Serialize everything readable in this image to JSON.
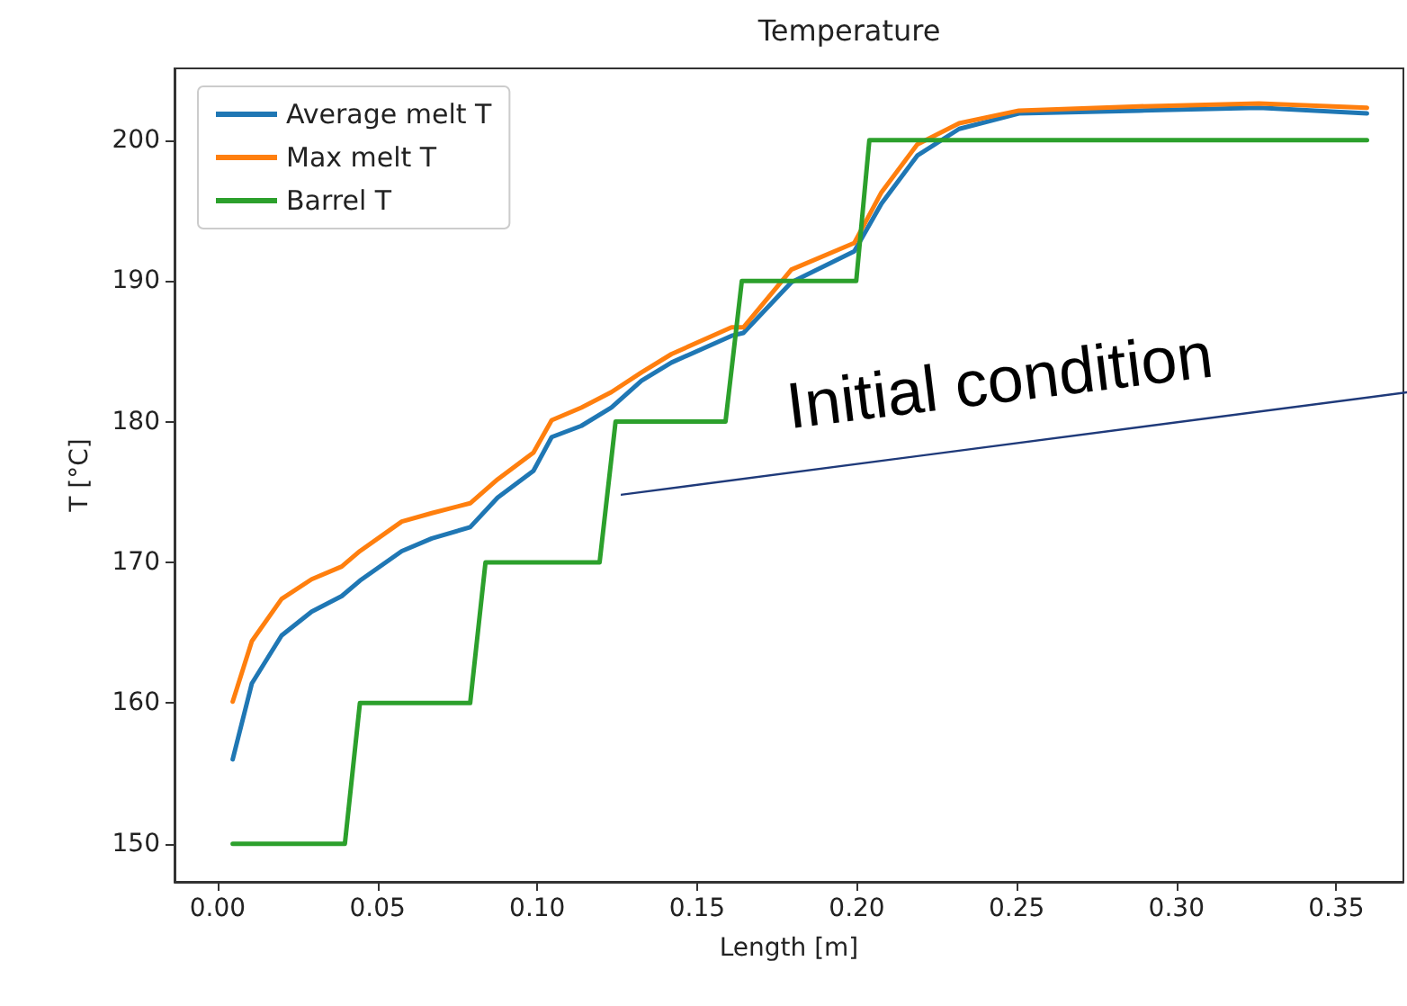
{
  "chart_data": {
    "type": "line",
    "title": "Temperature",
    "xlabel": "Length [m]",
    "ylabel": "T [°C]",
    "xlim": [
      -0.0135,
      0.371
    ],
    "ylim": [
      147.3,
      205.1
    ],
    "xticks": [
      {
        "value": 0,
        "label": "0.00"
      },
      0.05,
      {
        "value": 0.1,
        "label": "0.10"
      },
      0.15,
      {
        "value": 0.2,
        "label": "0.20"
      },
      0.25,
      {
        "value": 0.3,
        "label": "0.30"
      },
      0.35
    ],
    "yticks": [
      150,
      160,
      170,
      180,
      190,
      200
    ],
    "grid": false,
    "legend": "top left",
    "marker": "none",
    "line_style": "solid",
    "series": [
      {
        "name": "Average melt T",
        "color": "#1f77b4",
        "x": [
          0.0047,
          0.0107,
          0.02,
          0.0294,
          0.0388,
          0.0445,
          0.0576,
          0.067,
          0.079,
          0.0876,
          0.0988,
          0.1045,
          0.1138,
          0.1232,
          0.1326,
          0.142,
          0.1608,
          0.1645,
          0.1795,
          0.1992,
          0.2077,
          0.2189,
          0.232,
          0.2507,
          0.2883,
          0.3258,
          0.3596
        ],
        "values": [
          156.0,
          161.4,
          164.8,
          166.5,
          167.6,
          168.7,
          170.8,
          171.7,
          172.5,
          174.6,
          176.5,
          178.9,
          179.7,
          181.0,
          182.9,
          184.2,
          186.1,
          186.3,
          189.9,
          192.1,
          195.5,
          198.9,
          200.8,
          201.9,
          202.1,
          202.3,
          201.9
        ]
      },
      {
        "name": "Max melt T",
        "color": "#ff7f0e",
        "x": [
          0.0047,
          0.0107,
          0.02,
          0.0294,
          0.0388,
          0.0445,
          0.0576,
          0.067,
          0.079,
          0.0876,
          0.0988,
          0.1045,
          0.1138,
          0.1232,
          0.1326,
          0.142,
          0.1608,
          0.1645,
          0.1795,
          0.1992,
          0.2077,
          0.2189,
          0.232,
          0.2507,
          0.2883,
          0.3258,
          0.3596
        ],
        "values": [
          160.1,
          164.4,
          167.4,
          168.8,
          169.7,
          170.8,
          172.9,
          173.5,
          174.2,
          175.9,
          177.8,
          180.1,
          181.0,
          182.1,
          183.5,
          184.8,
          186.7,
          186.7,
          190.8,
          192.7,
          196.3,
          199.7,
          201.2,
          202.1,
          202.4,
          202.6,
          202.3
        ]
      },
      {
        "name": "Barrel T",
        "color": "#2ca02c",
        "x": [
          0.0047,
          0.0398,
          0.0445,
          0.079,
          0.0838,
          0.1195,
          0.1245,
          0.1589,
          0.164,
          0.1998,
          0.2039,
          0.3596
        ],
        "values": [
          150,
          150,
          160,
          160,
          170,
          170,
          180,
          180,
          190,
          190,
          200,
          200
        ]
      }
    ],
    "annotations": [
      {
        "text": "Initial condition",
        "x": 0.125,
        "y": 174.8
      }
    ]
  }
}
